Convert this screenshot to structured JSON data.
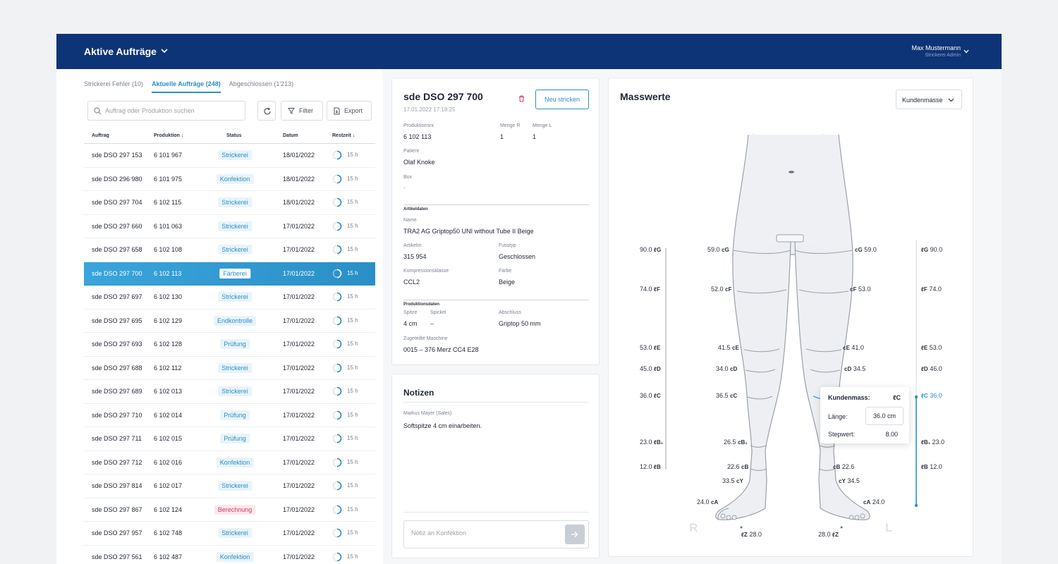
{
  "header": {
    "title": "Aktive Aufträge",
    "user_name": "Max Mustermann",
    "user_role": "Strickerei Admin"
  },
  "tabs": [
    {
      "label": "Strickerei Fehler",
      "count": "(10)"
    },
    {
      "label": "Aktuelle Aufträge",
      "count": "(248)"
    },
    {
      "label": "Abgeschlossen",
      "count": "(1'213)"
    }
  ],
  "toolbar": {
    "search_placeholder": "Auftrag oder Produktion suchen",
    "filter_label": "Filter",
    "export_label": "Export"
  },
  "table": {
    "headers": [
      "Auftrag",
      "Produktion ↓",
      "Status",
      "Datum",
      "Restzeit ↓"
    ],
    "rows": [
      {
        "auftrag": "sde DSO 297 153",
        "produktion": "6 101 967",
        "status": "Strickerei",
        "datum": "18/01/2022",
        "restzeit": "15 h"
      },
      {
        "auftrag": "sde DSO 296 980",
        "produktion": "6 101 975",
        "status": "Konfektion",
        "datum": "18/01/2022",
        "restzeit": "15 h"
      },
      {
        "auftrag": "sde DSO 297 704",
        "produktion": "6 102 115",
        "status": "Strickerei",
        "datum": "18/01/2022",
        "restzeit": "15 h"
      },
      {
        "auftrag": "sde DSO 297 660",
        "produktion": "6 101 063",
        "status": "Strickerei",
        "datum": "17/01/2022",
        "restzeit": "15 h"
      },
      {
        "auftrag": "sde DSO 297 658",
        "produktion": "6 102 108",
        "status": "Strickerei",
        "datum": "17/01/2022",
        "restzeit": "15 h"
      },
      {
        "auftrag": "sde DSO 297 700",
        "produktion": "6 102 113",
        "status": "Färberei",
        "datum": "17/01/2022",
        "restzeit": "15 h",
        "selected": true
      },
      {
        "auftrag": "sde DSO 297 697",
        "produktion": "6 102 130",
        "status": "Strickerei",
        "datum": "17/01/2022",
        "restzeit": "15 h"
      },
      {
        "auftrag": "sde DSO 297 695",
        "produktion": "6 102 129",
        "status": "Endkontrolle",
        "datum": "17/01/2022",
        "restzeit": "15 h"
      },
      {
        "auftrag": "sde DSO 297 693",
        "produktion": "6 102 128",
        "status": "Prüfung",
        "datum": "17/01/2022",
        "restzeit": "15 h"
      },
      {
        "auftrag": "sde DSO 297 688",
        "produktion": "6 102 112",
        "status": "Strickerei",
        "datum": "17/01/2022",
        "restzeit": "15 h"
      },
      {
        "auftrag": "sde DSO 297 689",
        "produktion": "6 102 013",
        "status": "Strickerei",
        "datum": "17/01/2022",
        "restzeit": "15 h"
      },
      {
        "auftrag": "sde DSO 297 710",
        "produktion": "6 102 014",
        "status": "Prüfung",
        "datum": "17/01/2022",
        "restzeit": "15 h"
      },
      {
        "auftrag": "sde DSO 297 711",
        "produktion": "6 102 015",
        "status": "Prüfung",
        "datum": "17/01/2022",
        "restzeit": "15 h"
      },
      {
        "auftrag": "sde DSO 297 712",
        "produktion": "6 102 016",
        "status": "Konfektion",
        "datum": "17/01/2022",
        "restzeit": "15 h"
      },
      {
        "auftrag": "sde DSO 297 814",
        "produktion": "6 102 017",
        "status": "Strickerei",
        "datum": "17/01/2022",
        "restzeit": "15 h"
      },
      {
        "auftrag": "sde DSO 297 867",
        "produktion": "6 102 124",
        "status": "Berechnung",
        "datum": "17/01/2022",
        "restzeit": "15 h"
      },
      {
        "auftrag": "sde DSO 297 957",
        "produktion": "6 102 748",
        "status": "Strickerei",
        "datum": "17/01/2022",
        "restzeit": "15 h"
      },
      {
        "auftrag": "sde DSO 297 561",
        "produktion": "6 102 487",
        "status": "Konfektion",
        "datum": "17/01/2022",
        "restzeit": "15 h"
      }
    ]
  },
  "colors": {
    "accent": "#2a8fc7",
    "header_bg": "#0d3476",
    "status_default_bg": "#e8f4fb",
    "status_default_fg": "#2a8fc7",
    "status_warn_bg": "#fde9ee",
    "status_warn_fg": "#d33a5e"
  },
  "detail": {
    "title": "sde DSO 297 700",
    "date": "17.01.2022 17:18:25",
    "btn_neu": "Neu stricken",
    "produktionsnr_label": "Produktionsnr.",
    "produktionsnr": "6 102 113",
    "menge_r_label": "Menge R",
    "menge_r": "1",
    "menge_l_label": "Menge L",
    "menge_l": "1",
    "patient_label": "Patient",
    "patient": "Olaf Knoke",
    "box_label": "Box",
    "box": "-",
    "artikeldaten": "Artikeldaten",
    "name_label": "Name",
    "name": "TRA2 AG Griptop50 UNI without Tube II Beige",
    "artikelnr_label": "Artikelnr.",
    "artikelnr": "315 954",
    "fusstyp_label": "Fusstyp",
    "fusstyp": "Geschlossen",
    "kompression_label": "Kompressionsklasse",
    "kompression": "CCL2",
    "farbe_label": "Farbe",
    "farbe": "Beige",
    "produktionsdaten": "Produktionsdaten",
    "spitze_label": "Spitze",
    "spitze": "4 cm",
    "spickel_label": "Spickel",
    "spickel": "–",
    "abschluss_label": "Abschluss",
    "abschluss": "Griptop 50 mm",
    "maschine_label": "Zugeteilte Maschine",
    "maschine": "0015 – 376 Merz CC4 E28"
  },
  "notes": {
    "title": "Notizen",
    "author": "Markus Mayer (Sales)",
    "text": "Softspitze 4 cm einarbeiten.",
    "input_placeholder": "Notiz an Konfektion"
  },
  "mass": {
    "title": "Masswerte",
    "select_value": "Kundenmasse",
    "side_right": "R",
    "side_left": "L",
    "left_scale": [
      {
        "value": "90.0",
        "code": "ℓG"
      },
      {
        "value": "74.0",
        "code": "ℓF"
      },
      {
        "value": "53.0",
        "code": "ℓE"
      },
      {
        "value": "45.0",
        "code": "ℓD"
      },
      {
        "value": "36.0",
        "code": "ℓC"
      },
      {
        "value": "23.0",
        "code": "ℓB₁"
      },
      {
        "value": "12.0",
        "code": "ℓB"
      }
    ],
    "right_scale": [
      {
        "value": "90.0",
        "code": "ℓG"
      },
      {
        "value": "74.0",
        "code": "ℓF"
      },
      {
        "value": "53.0",
        "code": "ℓE"
      },
      {
        "value": "46.0",
        "code": "ℓD"
      },
      {
        "value": "36.0",
        "code": "ℓC",
        "active": true
      },
      {
        "value": "23.0",
        "code": "ℓB₁"
      },
      {
        "value": "12.0",
        "code": "ℓB"
      }
    ],
    "leg_r": [
      {
        "value": "59.0",
        "code": "cG"
      },
      {
        "value": "52.0",
        "code": "cF"
      },
      {
        "value": "41.5",
        "code": "cE"
      },
      {
        "value": "34.0",
        "code": "cD"
      },
      {
        "value": "36.5",
        "code": "cC"
      },
      {
        "value": "26.5",
        "code": "cB₁"
      },
      {
        "value": "22.6",
        "code": "cB"
      },
      {
        "value": "33.5",
        "code": "cY"
      },
      {
        "value": "24.0",
        "code": "cA"
      }
    ],
    "leg_l": [
      {
        "value": "59.0",
        "code": "cG"
      },
      {
        "value": "53.0",
        "code": "cF"
      },
      {
        "value": "41.0",
        "code": "cE"
      },
      {
        "value": "34.5",
        "code": "cD"
      },
      {
        "value": "22.6",
        "code": "cB"
      },
      {
        "value": "34.5",
        "code": "cY"
      },
      {
        "value": "24.0",
        "code": "cA"
      }
    ],
    "foot_r": {
      "code": "ℓZ",
      "value": "28.0"
    },
    "foot_l": {
      "value": "28.0",
      "code": "ℓZ"
    },
    "tooltip": {
      "head": "Kundenmass:",
      "code": "ℓC",
      "laenge_label": "Länge:",
      "laenge_value": "36.0 cm",
      "step_label": "Stepwert:",
      "step_value": "8.00"
    }
  }
}
